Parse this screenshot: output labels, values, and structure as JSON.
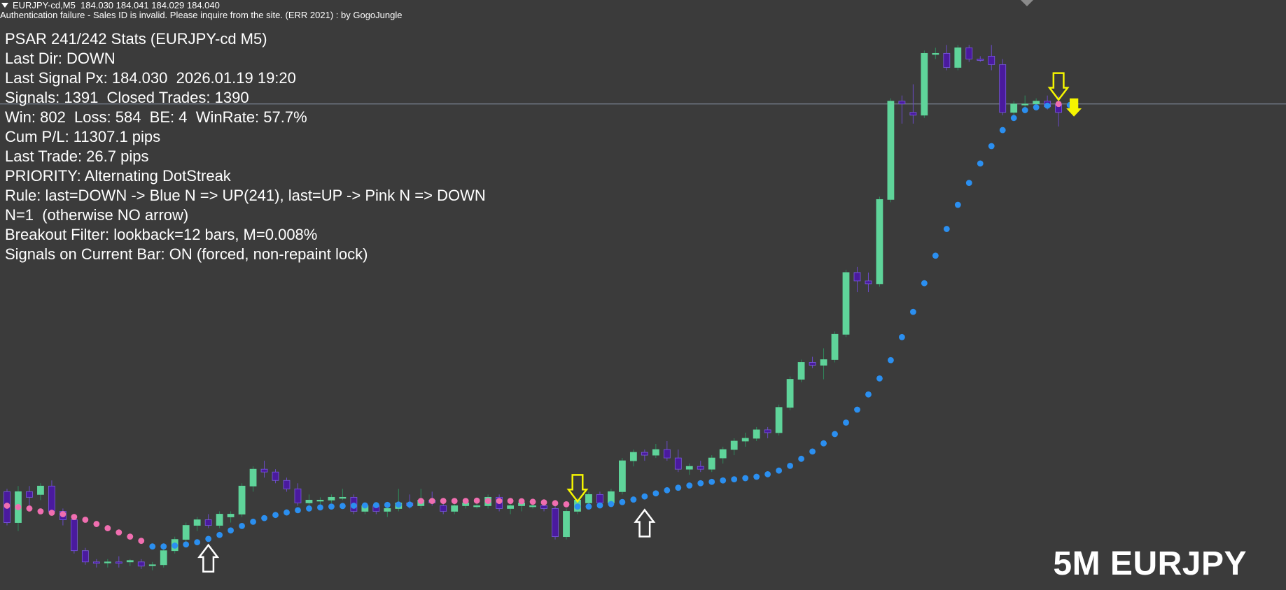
{
  "header": {
    "quote": "EURJPY-cd,M5  184.030 184.041 184.029 184.040",
    "auth_message": "Authentication failure - Sales ID is invalid. Please inquire from the site. (ERR 2021) : by GogoJungle"
  },
  "stats": {
    "title": "PSAR 241/242 Stats (EURJPY-cd M5)",
    "last_dir": "Last Dir: DOWN",
    "last_signal": "Last Signal Px: 184.030  2026.01.19 19:20",
    "signals": "Signals: 1391  Closed Trades: 1390",
    "win_loss": "Win: 802  Loss: 584  BE: 4  WinRate: 57.7%",
    "cum_pl": "Cum P/L: 11307.1 pips",
    "last_trade": "Last Trade: 26.7 pips",
    "priority": "PRIORITY: Alternating DotStreak",
    "rule": "Rule: last=DOWN -> Blue N => UP(241), last=UP -> Pink N => DOWN",
    "n_rule": "N=1  (otherwise NO arrow)",
    "breakout": "Breakout Filter: lookback=12 bars, M=0.008%",
    "current_bar": "Signals on Current Bar: ON (forced, non-repaint lock)"
  },
  "watermark": "5M EURJPY",
  "colors": {
    "background": "#3b3b3b",
    "bull_candle": "#5fd49a",
    "bear_candle": "#4a1a9e",
    "psar_up": "#2b8ff0",
    "psar_down": "#f06eb0",
    "signal_down": "#f5f500",
    "signal_up": "#ffffff",
    "price_line": "#8a94a6"
  },
  "chart_data": {
    "type": "candlestick",
    "symbol": "EURJPY-cd",
    "timeframe": "M5",
    "current_bid": 184.03,
    "candles": [
      {
        "o": 182.65,
        "h": 182.66,
        "l": 182.53,
        "c": 182.54
      },
      {
        "o": 182.54,
        "h": 182.67,
        "l": 182.51,
        "c": 182.65
      },
      {
        "o": 182.65,
        "h": 182.67,
        "l": 182.58,
        "c": 182.63
      },
      {
        "o": 182.64,
        "h": 182.68,
        "l": 182.62,
        "c": 182.67
      },
      {
        "o": 182.67,
        "h": 182.69,
        "l": 182.57,
        "c": 182.58
      },
      {
        "o": 182.58,
        "h": 182.59,
        "l": 182.53,
        "c": 182.55
      },
      {
        "o": 182.55,
        "h": 182.56,
        "l": 182.43,
        "c": 182.44
      },
      {
        "o": 182.44,
        "h": 182.45,
        "l": 182.39,
        "c": 182.4
      },
      {
        "o": 182.4,
        "h": 182.41,
        "l": 182.38,
        "c": 182.395
      },
      {
        "o": 182.4,
        "h": 182.41,
        "l": 182.38,
        "c": 182.4
      },
      {
        "o": 182.4,
        "h": 182.42,
        "l": 182.38,
        "c": 182.395
      },
      {
        "o": 182.4,
        "h": 182.41,
        "l": 182.385,
        "c": 182.405
      },
      {
        "o": 182.4,
        "h": 182.41,
        "l": 182.375,
        "c": 182.385
      },
      {
        "o": 182.39,
        "h": 182.4,
        "l": 182.37,
        "c": 182.39
      },
      {
        "o": 182.39,
        "h": 182.45,
        "l": 182.38,
        "c": 182.44
      },
      {
        "o": 182.44,
        "h": 182.49,
        "l": 182.43,
        "c": 182.48
      },
      {
        "o": 182.48,
        "h": 182.54,
        "l": 182.47,
        "c": 182.53
      },
      {
        "o": 182.53,
        "h": 182.56,
        "l": 182.51,
        "c": 182.55
      },
      {
        "o": 182.55,
        "h": 182.57,
        "l": 182.52,
        "c": 182.53
      },
      {
        "o": 182.53,
        "h": 182.58,
        "l": 182.52,
        "c": 182.57
      },
      {
        "o": 182.56,
        "h": 182.58,
        "l": 182.54,
        "c": 182.57
      },
      {
        "o": 182.57,
        "h": 182.68,
        "l": 182.56,
        "c": 182.67
      },
      {
        "o": 182.67,
        "h": 182.74,
        "l": 182.65,
        "c": 182.73
      },
      {
        "o": 182.73,
        "h": 182.76,
        "l": 182.7,
        "c": 182.72
      },
      {
        "o": 182.72,
        "h": 182.73,
        "l": 182.68,
        "c": 182.69
      },
      {
        "o": 182.69,
        "h": 182.7,
        "l": 182.65,
        "c": 182.66
      },
      {
        "o": 182.66,
        "h": 182.68,
        "l": 182.6,
        "c": 182.61
      },
      {
        "o": 182.61,
        "h": 182.64,
        "l": 182.6,
        "c": 182.62
      },
      {
        "o": 182.62,
        "h": 182.63,
        "l": 182.6,
        "c": 182.62
      },
      {
        "o": 182.62,
        "h": 182.64,
        "l": 182.61,
        "c": 182.63
      },
      {
        "o": 182.63,
        "h": 182.66,
        "l": 182.62,
        "c": 182.63
      },
      {
        "o": 182.63,
        "h": 182.64,
        "l": 182.57,
        "c": 182.58
      },
      {
        "o": 182.58,
        "h": 182.61,
        "l": 182.57,
        "c": 182.6
      },
      {
        "o": 182.6,
        "h": 182.61,
        "l": 182.57,
        "c": 182.58
      },
      {
        "o": 182.58,
        "h": 182.6,
        "l": 182.56,
        "c": 182.59
      },
      {
        "o": 182.59,
        "h": 182.66,
        "l": 182.58,
        "c": 182.61
      },
      {
        "o": 182.61,
        "h": 182.64,
        "l": 182.59,
        "c": 182.6
      },
      {
        "o": 182.6,
        "h": 182.66,
        "l": 182.59,
        "c": 182.62
      },
      {
        "o": 182.62,
        "h": 182.65,
        "l": 182.6,
        "c": 182.61
      },
      {
        "o": 182.6,
        "h": 182.61,
        "l": 182.57,
        "c": 182.58
      },
      {
        "o": 182.58,
        "h": 182.61,
        "l": 182.57,
        "c": 182.6
      },
      {
        "o": 182.6,
        "h": 182.62,
        "l": 182.59,
        "c": 182.61
      },
      {
        "o": 182.6,
        "h": 182.61,
        "l": 182.59,
        "c": 182.6
      },
      {
        "o": 182.6,
        "h": 182.64,
        "l": 182.59,
        "c": 182.63
      },
      {
        "o": 182.63,
        "h": 182.64,
        "l": 182.58,
        "c": 182.59
      },
      {
        "o": 182.59,
        "h": 182.61,
        "l": 182.57,
        "c": 182.6
      },
      {
        "o": 182.6,
        "h": 182.62,
        "l": 182.58,
        "c": 182.61
      },
      {
        "o": 182.6,
        "h": 182.62,
        "l": 182.59,
        "c": 182.6
      },
      {
        "o": 182.6,
        "h": 182.61,
        "l": 182.58,
        "c": 182.59
      },
      {
        "o": 182.59,
        "h": 182.6,
        "l": 182.48,
        "c": 182.49
      },
      {
        "o": 182.49,
        "h": 182.59,
        "l": 182.48,
        "c": 182.58
      },
      {
        "o": 182.58,
        "h": 182.63,
        "l": 182.57,
        "c": 182.62
      },
      {
        "o": 182.61,
        "h": 182.65,
        "l": 182.6,
        "c": 182.64
      },
      {
        "o": 182.64,
        "h": 182.65,
        "l": 182.6,
        "c": 182.61
      },
      {
        "o": 182.61,
        "h": 182.66,
        "l": 182.6,
        "c": 182.65
      },
      {
        "o": 182.65,
        "h": 182.77,
        "l": 182.64,
        "c": 182.76
      },
      {
        "o": 182.76,
        "h": 182.8,
        "l": 182.74,
        "c": 182.79
      },
      {
        "o": 182.79,
        "h": 182.8,
        "l": 182.76,
        "c": 182.78
      },
      {
        "o": 182.78,
        "h": 182.82,
        "l": 182.77,
        "c": 182.8
      },
      {
        "o": 182.8,
        "h": 182.83,
        "l": 182.76,
        "c": 182.77
      },
      {
        "o": 182.77,
        "h": 182.8,
        "l": 182.72,
        "c": 182.73
      },
      {
        "o": 182.73,
        "h": 182.75,
        "l": 182.71,
        "c": 182.74
      },
      {
        "o": 182.74,
        "h": 182.76,
        "l": 182.72,
        "c": 182.73
      },
      {
        "o": 182.73,
        "h": 182.78,
        "l": 182.72,
        "c": 182.77
      },
      {
        "o": 182.77,
        "h": 182.81,
        "l": 182.75,
        "c": 182.8
      },
      {
        "o": 182.8,
        "h": 182.84,
        "l": 182.78,
        "c": 182.83
      },
      {
        "o": 182.83,
        "h": 182.86,
        "l": 182.81,
        "c": 182.84
      },
      {
        "o": 182.84,
        "h": 182.88,
        "l": 182.83,
        "c": 182.87
      },
      {
        "o": 182.87,
        "h": 182.88,
        "l": 182.84,
        "c": 182.86
      },
      {
        "o": 182.86,
        "h": 182.96,
        "l": 182.85,
        "c": 182.95
      },
      {
        "o": 182.95,
        "h": 183.06,
        "l": 182.94,
        "c": 183.05
      },
      {
        "o": 183.05,
        "h": 183.12,
        "l": 183.04,
        "c": 183.11
      },
      {
        "o": 183.11,
        "h": 183.13,
        "l": 183.09,
        "c": 183.1
      },
      {
        "o": 183.1,
        "h": 183.16,
        "l": 183.05,
        "c": 183.12
      },
      {
        "o": 183.12,
        "h": 183.22,
        "l": 183.11,
        "c": 183.21
      },
      {
        "o": 183.21,
        "h": 183.44,
        "l": 183.2,
        "c": 183.43
      },
      {
        "o": 183.43,
        "h": 183.45,
        "l": 183.36,
        "c": 183.4
      },
      {
        "o": 183.4,
        "h": 183.43,
        "l": 183.36,
        "c": 183.39
      },
      {
        "o": 183.39,
        "h": 183.7,
        "l": 183.38,
        "c": 183.69
      },
      {
        "o": 183.69,
        "h": 184.05,
        "l": 183.68,
        "c": 184.04
      },
      {
        "o": 184.04,
        "h": 184.06,
        "l": 183.96,
        "c": 184.03
      },
      {
        "o": 184.0,
        "h": 184.1,
        "l": 183.96,
        "c": 183.99
      },
      {
        "o": 183.99,
        "h": 184.22,
        "l": 183.98,
        "c": 184.21
      },
      {
        "o": 184.21,
        "h": 184.23,
        "l": 184.19,
        "c": 184.21
      },
      {
        "o": 184.21,
        "h": 184.24,
        "l": 184.15,
        "c": 184.16
      },
      {
        "o": 184.16,
        "h": 184.24,
        "l": 184.15,
        "c": 184.23
      },
      {
        "o": 184.23,
        "h": 184.24,
        "l": 184.18,
        "c": 184.19
      },
      {
        "o": 184.19,
        "h": 184.2,
        "l": 184.18,
        "c": 184.185
      },
      {
        "o": 184.2,
        "h": 184.24,
        "l": 184.15,
        "c": 184.17
      },
      {
        "o": 184.17,
        "h": 184.19,
        "l": 183.99,
        "c": 184.0
      },
      {
        "o": 184.0,
        "h": 184.04,
        "l": 183.99,
        "c": 184.03
      },
      {
        "o": 184.03,
        "h": 184.06,
        "l": 184.01,
        "c": 184.03
      },
      {
        "o": 184.03,
        "h": 184.05,
        "l": 184.01,
        "c": 184.04
      },
      {
        "o": 184.04,
        "h": 184.06,
        "l": 184.01,
        "c": 184.02
      },
      {
        "o": 184.03,
        "h": 184.06,
        "l": 183.95,
        "c": 184.0
      }
    ],
    "psar": [
      {
        "i": 0,
        "v": 182.6,
        "d": "down"
      },
      {
        "i": 1,
        "v": 182.595,
        "d": "down"
      },
      {
        "i": 2,
        "v": 182.59,
        "d": "down"
      },
      {
        "i": 3,
        "v": 182.58,
        "d": "down"
      },
      {
        "i": 4,
        "v": 182.575,
        "d": "down"
      },
      {
        "i": 5,
        "v": 182.57,
        "d": "down"
      },
      {
        "i": 6,
        "v": 182.56,
        "d": "down"
      },
      {
        "i": 7,
        "v": 182.55,
        "d": "down"
      },
      {
        "i": 8,
        "v": 182.535,
        "d": "down"
      },
      {
        "i": 9,
        "v": 182.52,
        "d": "down"
      },
      {
        "i": 10,
        "v": 182.505,
        "d": "down"
      },
      {
        "i": 11,
        "v": 182.49,
        "d": "down"
      },
      {
        "i": 12,
        "v": 182.475,
        "d": "down"
      },
      {
        "i": 13,
        "v": 182.455,
        "d": "up"
      },
      {
        "i": 14,
        "v": 182.455,
        "d": "up"
      },
      {
        "i": 15,
        "v": 182.458,
        "d": "up"
      },
      {
        "i": 16,
        "v": 182.462,
        "d": "up"
      },
      {
        "i": 17,
        "v": 182.47,
        "d": "up"
      },
      {
        "i": 18,
        "v": 182.482,
        "d": "up"
      },
      {
        "i": 19,
        "v": 182.496,
        "d": "up"
      },
      {
        "i": 20,
        "v": 182.512,
        "d": "up"
      },
      {
        "i": 21,
        "v": 182.528,
        "d": "up"
      },
      {
        "i": 22,
        "v": 182.543,
        "d": "up"
      },
      {
        "i": 23,
        "v": 182.556,
        "d": "up"
      },
      {
        "i": 24,
        "v": 182.567,
        "d": "up"
      },
      {
        "i": 25,
        "v": 182.576,
        "d": "up"
      },
      {
        "i": 26,
        "v": 182.584,
        "d": "up"
      },
      {
        "i": 27,
        "v": 182.59,
        "d": "up"
      },
      {
        "i": 28,
        "v": 182.594,
        "d": "up"
      },
      {
        "i": 29,
        "v": 182.597,
        "d": "up"
      },
      {
        "i": 30,
        "v": 182.599,
        "d": "up"
      },
      {
        "i": 31,
        "v": 182.6,
        "d": "up"
      },
      {
        "i": 32,
        "v": 182.601,
        "d": "up"
      },
      {
        "i": 33,
        "v": 182.602,
        "d": "up"
      },
      {
        "i": 34,
        "v": 182.603,
        "d": "up"
      },
      {
        "i": 35,
        "v": 182.604,
        "d": "up"
      },
      {
        "i": 36,
        "v": 182.604,
        "d": "up"
      },
      {
        "i": 37,
        "v": 182.617,
        "d": "down"
      },
      {
        "i": 38,
        "v": 182.617,
        "d": "down"
      },
      {
        "i": 39,
        "v": 182.617,
        "d": "down"
      },
      {
        "i": 40,
        "v": 182.617,
        "d": "down"
      },
      {
        "i": 41,
        "v": 182.617,
        "d": "down"
      },
      {
        "i": 42,
        "v": 182.618,
        "d": "down"
      },
      {
        "i": 43,
        "v": 182.617,
        "d": "down"
      },
      {
        "i": 44,
        "v": 182.617,
        "d": "down"
      },
      {
        "i": 45,
        "v": 182.617,
        "d": "down"
      },
      {
        "i": 46,
        "v": 182.616,
        "d": "down"
      },
      {
        "i": 47,
        "v": 182.614,
        "d": "down"
      },
      {
        "i": 48,
        "v": 182.612,
        "d": "down"
      },
      {
        "i": 49,
        "v": 182.609,
        "d": "down"
      },
      {
        "i": 50,
        "v": 182.605,
        "d": "down"
      },
      {
        "i": 51,
        "v": 182.597,
        "d": "up"
      },
      {
        "i": 52,
        "v": 182.597,
        "d": "up"
      },
      {
        "i": 53,
        "v": 182.601,
        "d": "up"
      },
      {
        "i": 54,
        "v": 182.606,
        "d": "up"
      },
      {
        "i": 55,
        "v": 182.613,
        "d": "up"
      },
      {
        "i": 56,
        "v": 182.622,
        "d": "up"
      },
      {
        "i": 57,
        "v": 182.633,
        "d": "up"
      },
      {
        "i": 58,
        "v": 182.644,
        "d": "up"
      },
      {
        "i": 59,
        "v": 182.655,
        "d": "up"
      },
      {
        "i": 60,
        "v": 182.664,
        "d": "up"
      },
      {
        "i": 61,
        "v": 182.672,
        "d": "up"
      },
      {
        "i": 62,
        "v": 182.68,
        "d": "up"
      },
      {
        "i": 63,
        "v": 182.685,
        "d": "up"
      },
      {
        "i": 64,
        "v": 182.69,
        "d": "up"
      },
      {
        "i": 65,
        "v": 182.694,
        "d": "up"
      },
      {
        "i": 66,
        "v": 182.698,
        "d": "up"
      },
      {
        "i": 67,
        "v": 182.703,
        "d": "up"
      },
      {
        "i": 68,
        "v": 182.712,
        "d": "up"
      },
      {
        "i": 69,
        "v": 182.725,
        "d": "up"
      },
      {
        "i": 70,
        "v": 182.742,
        "d": "up"
      },
      {
        "i": 71,
        "v": 182.767,
        "d": "up"
      },
      {
        "i": 72,
        "v": 182.793,
        "d": "up"
      },
      {
        "i": 73,
        "v": 182.822,
        "d": "up"
      },
      {
        "i": 74,
        "v": 182.855,
        "d": "up"
      },
      {
        "i": 75,
        "v": 182.896,
        "d": "up"
      },
      {
        "i": 76,
        "v": 182.942,
        "d": "up"
      },
      {
        "i": 77,
        "v": 182.996,
        "d": "up"
      },
      {
        "i": 78,
        "v": 183.053,
        "d": "up"
      },
      {
        "i": 79,
        "v": 183.118,
        "d": "up"
      },
      {
        "i": 80,
        "v": 183.2,
        "d": "up"
      },
      {
        "i": 81,
        "v": 183.29,
        "d": "up"
      },
      {
        "i": 82,
        "v": 183.392,
        "d": "up"
      },
      {
        "i": 83,
        "v": 183.49,
        "d": "up"
      },
      {
        "i": 84,
        "v": 183.585,
        "d": "up"
      },
      {
        "i": 85,
        "v": 183.671,
        "d": "up"
      },
      {
        "i": 86,
        "v": 183.749,
        "d": "up"
      },
      {
        "i": 87,
        "v": 183.818,
        "d": "up"
      },
      {
        "i": 88,
        "v": 183.88,
        "d": "up"
      },
      {
        "i": 89,
        "v": 183.937,
        "d": "up"
      },
      {
        "i": 90,
        "v": 183.98,
        "d": "up"
      },
      {
        "i": 91,
        "v": 184.008,
        "d": "up"
      },
      {
        "i": 92,
        "v": 184.018,
        "d": "up"
      },
      {
        "i": 93,
        "v": 184.024,
        "d": "up"
      },
      {
        "i": 94,
        "v": 184.03,
        "d": "down"
      },
      {
        "i": 95,
        "v": 184.026,
        "d": "up"
      }
    ],
    "signals": [
      {
        "i": 18,
        "dir": "up",
        "style": "outline",
        "price": 182.44
      },
      {
        "i": 51,
        "dir": "down",
        "style": "outline",
        "price": 182.64
      },
      {
        "i": 57,
        "dir": "up",
        "style": "outline",
        "price": 182.565
      },
      {
        "i": 94,
        "dir": "down",
        "style": "outline",
        "price": 184.07
      },
      {
        "i": 95,
        "dir": "down",
        "style": "solid",
        "price": 184.035
      }
    ]
  }
}
